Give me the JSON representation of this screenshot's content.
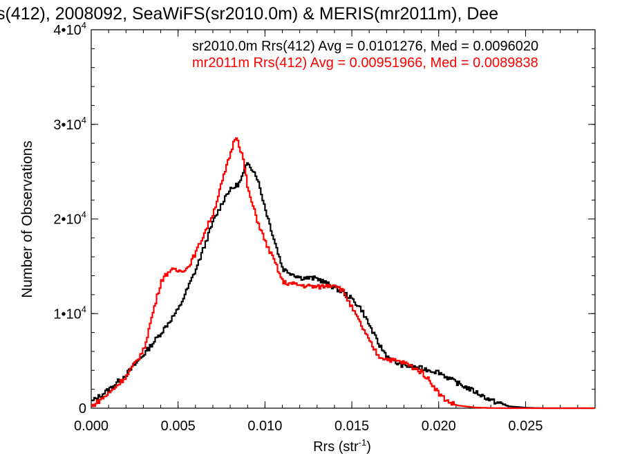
{
  "chart_data": {
    "type": "line",
    "title": "s(412), 2008092, SeaWiFS(sr2010.0m) & MERIS(mr2011m), Dee",
    "xlabel_main": "Rrs (str",
    "xlabel_sup": "-1",
    "xlabel_close": ")",
    "ylabel": "Number of Observations",
    "xlim": [
      0.0,
      0.029
    ],
    "ylim": [
      0,
      40000
    ],
    "x_ticks": [
      0.0,
      0.005,
      0.01,
      0.015,
      0.02,
      0.025
    ],
    "x_tick_labels": [
      "0.000",
      "0.005",
      "0.010",
      "0.015",
      "0.020",
      "0.025"
    ],
    "y_ticks": [
      {
        "value": 0,
        "label": "0",
        "exp": ""
      },
      {
        "value": 10000,
        "label": "1•10",
        "exp": "4"
      },
      {
        "value": 20000,
        "label": "2•10",
        "exp": "4"
      },
      {
        "value": 30000,
        "label": "3•10",
        "exp": "4"
      },
      {
        "value": 40000,
        "label": "4•10",
        "exp": "4"
      }
    ],
    "annotations": [
      "sr2010.0m Rrs(412) Avg = 0.0101276, Med = 0.0096020",
      "mr2011m Rrs(412) Avg = 0.00951966, Med = 0.0089838"
    ],
    "grid": false,
    "series": [
      {
        "color": "#000000",
        "x": [
          0.0,
          0.001,
          0.002,
          0.003,
          0.004,
          0.005,
          0.006,
          0.007,
          0.0078,
          0.0085,
          0.009,
          0.0095,
          0.01,
          0.0105,
          0.011,
          0.012,
          0.013,
          0.014,
          0.0145,
          0.015,
          0.0155,
          0.016,
          0.0165,
          0.017,
          0.0175,
          0.018,
          0.019,
          0.0195,
          0.02,
          0.0205,
          0.021,
          0.022,
          0.023,
          0.024,
          0.025,
          0.026,
          0.029
        ],
        "y": [
          700,
          2000,
          3600,
          5700,
          8000,
          10500,
          14700,
          19800,
          22800,
          23800,
          26000,
          24500,
          21000,
          17800,
          14700,
          13800,
          13700,
          12700,
          12200,
          11500,
          10500,
          8700,
          6800,
          5500,
          4800,
          4500,
          4200,
          4000,
          3800,
          3200,
          2700,
          1800,
          800,
          200,
          50,
          0,
          0
        ]
      },
      {
        "color": "#ff0000",
        "x": [
          0.0,
          0.001,
          0.002,
          0.003,
          0.0035,
          0.004,
          0.0045,
          0.005,
          0.0055,
          0.006,
          0.007,
          0.0078,
          0.0083,
          0.0087,
          0.009,
          0.0095,
          0.01,
          0.0105,
          0.011,
          0.012,
          0.013,
          0.014,
          0.0145,
          0.015,
          0.0155,
          0.016,
          0.0165,
          0.017,
          0.0175,
          0.018,
          0.019,
          0.0195,
          0.02,
          0.0205,
          0.021,
          0.022,
          0.023,
          0.024,
          0.029
        ],
        "y": [
          200,
          1600,
          3400,
          6200,
          10000,
          13500,
          14600,
          14500,
          14800,
          16500,
          20700,
          25800,
          28900,
          26500,
          23000,
          20000,
          17500,
          15600,
          13300,
          13000,
          12800,
          13100,
          12300,
          10500,
          8800,
          7000,
          5500,
          5200,
          5000,
          4800,
          3800,
          2800,
          1500,
          700,
          300,
          80,
          20,
          0,
          0
        ]
      }
    ]
  }
}
